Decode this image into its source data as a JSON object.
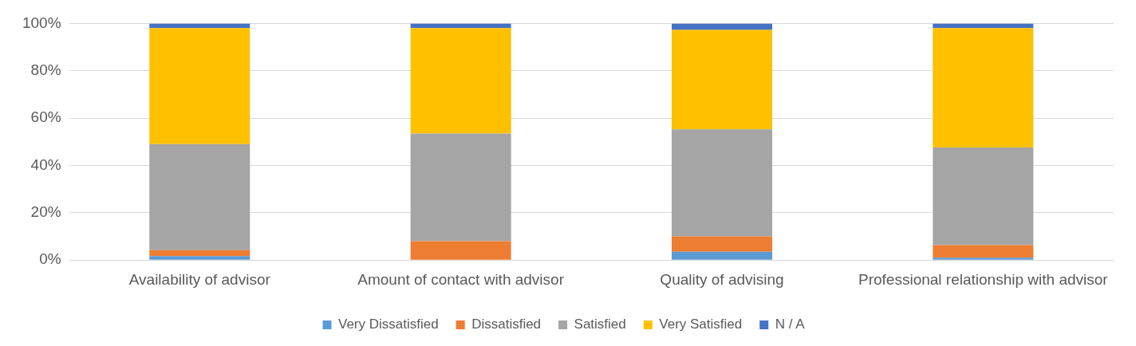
{
  "chart_data": {
    "type": "bar",
    "stacked": true,
    "categories": [
      "Availability of advisor",
      "Amount of contact with advisor",
      "Quality of advising",
      "Professional relationship with advisor"
    ],
    "series": [
      {
        "name": "Very Dissatisfied",
        "color": "#5b9bd5",
        "values": [
          1.7,
          0,
          3.5,
          1
        ]
      },
      {
        "name": "Dissatisfied",
        "color": "#ed7d31",
        "values": [
          2.5,
          8,
          6.5,
          5.3
        ]
      },
      {
        "name": "Satisfied",
        "color": "#a5a5a5",
        "values": [
          44.8,
          45.5,
          45.2,
          41.3
        ]
      },
      {
        "name": "Very Satisfied",
        "color": "#ffc000",
        "values": [
          49,
          44.5,
          42.1,
          50.4
        ]
      },
      {
        "name": "N / A",
        "color": "#4472c4",
        "values": [
          2,
          2,
          2.7,
          2
        ]
      }
    ],
    "ylim": [
      0,
      100
    ],
    "yticks": [
      {
        "value": 0,
        "label": "0%"
      },
      {
        "value": 20,
        "label": "20%"
      },
      {
        "value": 40,
        "label": "40%"
      },
      {
        "value": 60,
        "label": "60%"
      },
      {
        "value": 80,
        "label": "80%"
      },
      {
        "value": 100,
        "label": "100%"
      }
    ],
    "grid": "y",
    "legend": "bottom"
  }
}
